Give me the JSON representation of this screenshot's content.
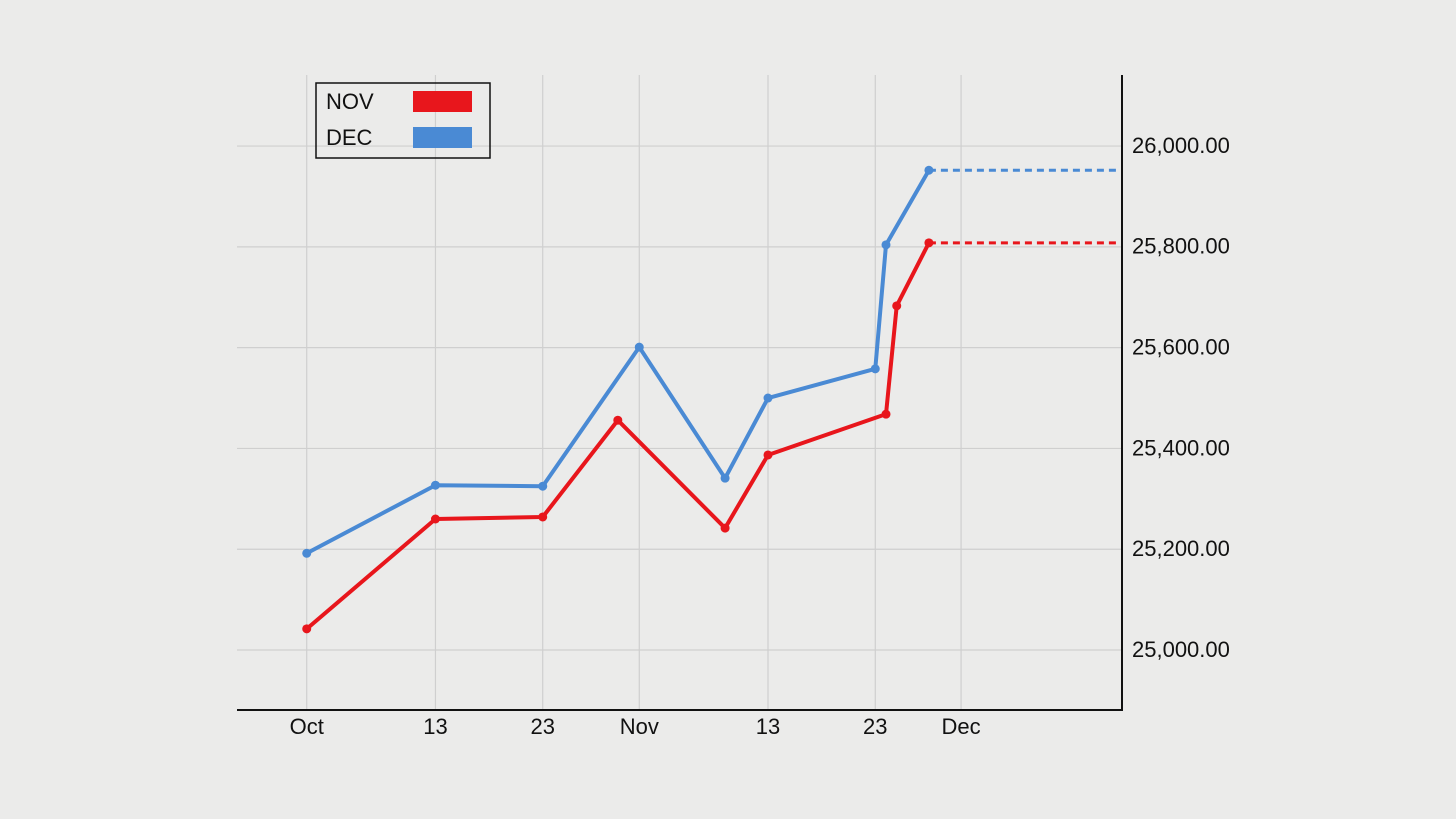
{
  "chart_data": {
    "type": "line",
    "series": [
      {
        "name": "NOV",
        "color": "#e8161c",
        "x": [
          0,
          12,
          22,
          29,
          39,
          43,
          54,
          55,
          58
        ],
        "values": [
          25042,
          25260,
          25264,
          25456,
          25242,
          25387,
          25468,
          25683,
          25808
        ]
      },
      {
        "name": "DEC",
        "color": "#4a8ad4",
        "x": [
          0,
          12,
          22,
          31,
          39,
          43,
          53,
          54,
          58
        ],
        "values": [
          25192,
          25327,
          25325,
          25601,
          25341,
          25500,
          25558,
          25804,
          25952
        ]
      }
    ],
    "xlim": [
      -6.5,
      76
    ],
    "xticks": [
      {
        "value": 0,
        "label": "Oct"
      },
      {
        "value": 12,
        "label": "13"
      },
      {
        "value": 22,
        "label": "23"
      },
      {
        "value": 31,
        "label": "Nov"
      },
      {
        "value": 43,
        "label": "13"
      },
      {
        "value": 53,
        "label": "23"
      },
      {
        "value": 61,
        "label": "Dec"
      }
    ],
    "ylim": [
      24881,
      26141
    ],
    "yticks": [
      {
        "value": 25000,
        "label": "25,000.00"
      },
      {
        "value": 25200,
        "label": "25,200.00"
      },
      {
        "value": 25400,
        "label": "25,400.00"
      },
      {
        "value": 25600,
        "label": "25,600.00"
      },
      {
        "value": 25800,
        "label": "25,800.00"
      },
      {
        "value": 26000,
        "label": "26,000.00"
      }
    ],
    "grid": true,
    "legend": "upper left",
    "extend_last": true
  }
}
